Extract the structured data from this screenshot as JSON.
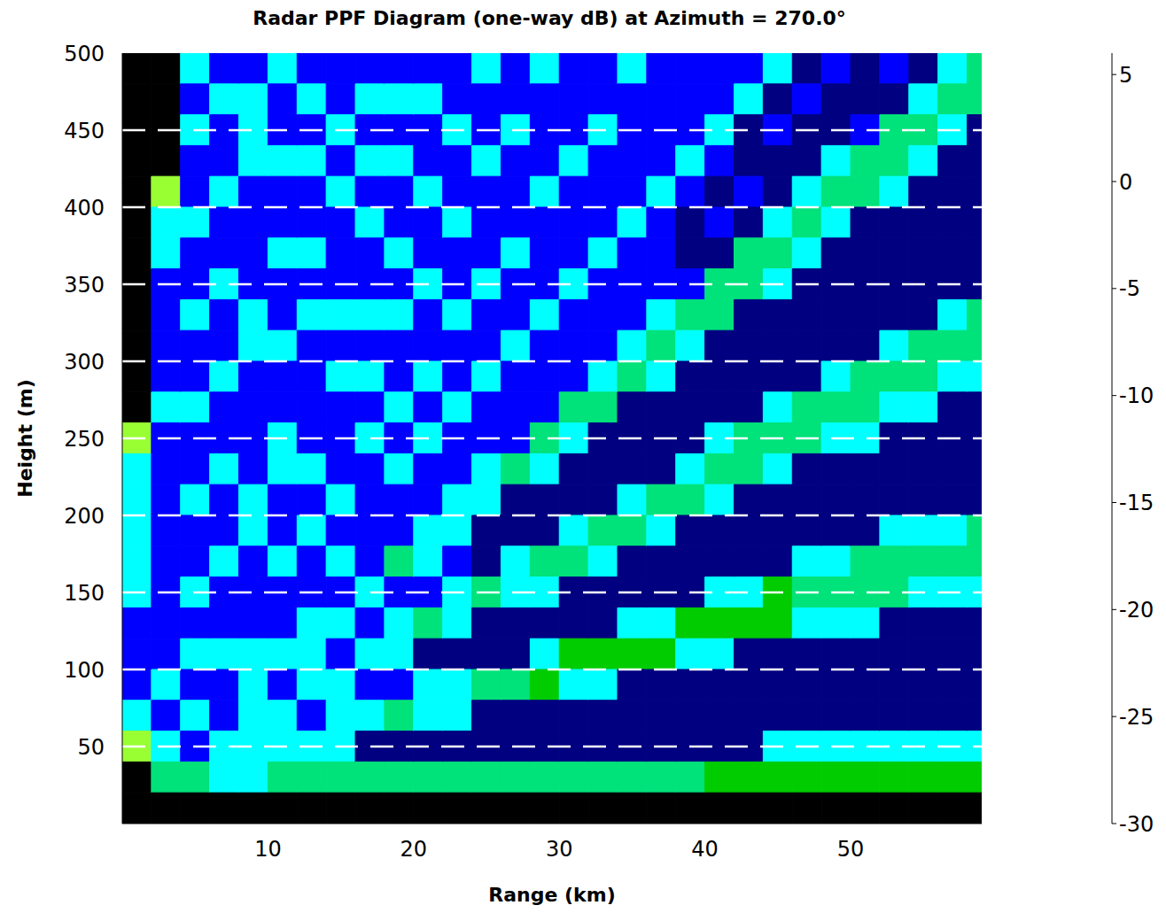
{
  "chart_data": {
    "type": "heatmap",
    "title": "Radar PPF Diagram (one-way dB) at Azimuth = 270.0°",
    "x_label": "Range (km)",
    "y_label": "Height (m)",
    "xlim": [
      0,
      59
    ],
    "xticks": [
      10,
      20,
      30,
      40,
      50
    ],
    "ylim": [
      0,
      500
    ],
    "yticks": [
      50,
      100,
      150,
      200,
      250,
      300,
      350,
      400,
      450,
      500
    ],
    "grid": true,
    "cells": {
      "x_edges": [
        0,
        2,
        4,
        6,
        8,
        10,
        12,
        14,
        16,
        18,
        20,
        22,
        24,
        26,
        28,
        30,
        32,
        34,
        36,
        38,
        40,
        42,
        44,
        46,
        48,
        50,
        52,
        54,
        56,
        58,
        60
      ],
      "y_edges": [
        500,
        480,
        460,
        440,
        420,
        400,
        380,
        360,
        340,
        320,
        300,
        280,
        260,
        240,
        220,
        200,
        180,
        160,
        140,
        120,
        100,
        80,
        60,
        40,
        20,
        0
      ],
      "columns": [
        [
          -40,
          -40,
          -40,
          -40,
          -40,
          -40,
          -40,
          -40,
          -40,
          -40,
          -40,
          -40,
          -15,
          -3,
          -3,
          -3,
          -3,
          -3,
          0,
          0,
          0,
          -3,
          -15,
          -40,
          -40
        ],
        [
          -40,
          -40,
          -40,
          -40,
          -15,
          -3,
          -3,
          0,
          0,
          0,
          0,
          -3,
          0,
          0,
          0,
          0,
          0,
          0,
          0,
          0,
          -3,
          0,
          -3,
          -7,
          -40
        ],
        [
          -3,
          0,
          -3,
          0,
          0,
          -3,
          0,
          0,
          -3,
          0,
          0,
          -3,
          0,
          0,
          -3,
          0,
          0,
          -3,
          0,
          -3,
          0,
          -3,
          0,
          -7,
          -40
        ],
        [
          0,
          -3,
          0,
          0,
          -3,
          0,
          0,
          -3,
          0,
          0,
          -3,
          0,
          0,
          -3,
          0,
          0,
          -3,
          0,
          0,
          -3,
          0,
          0,
          -3,
          -3,
          -40
        ],
        [
          0,
          -3,
          -3,
          -3,
          0,
          0,
          0,
          0,
          -3,
          -3,
          0,
          0,
          0,
          0,
          -3,
          -3,
          0,
          0,
          0,
          -3,
          -3,
          -3,
          -3,
          -3,
          -40
        ],
        [
          -3,
          0,
          0,
          -3,
          0,
          0,
          -3,
          0,
          0,
          -3,
          0,
          0,
          -3,
          -3,
          0,
          0,
          -3,
          0,
          0,
          -3,
          0,
          -3,
          -3,
          -7,
          -40
        ],
        [
          0,
          -3,
          0,
          -3,
          0,
          0,
          -3,
          0,
          -3,
          0,
          0,
          0,
          0,
          -3,
          0,
          -3,
          0,
          0,
          -3,
          -3,
          -3,
          0,
          -3,
          -7,
          -40
        ],
        [
          0,
          0,
          -3,
          0,
          -3,
          0,
          0,
          0,
          -3,
          0,
          -3,
          0,
          0,
          0,
          -3,
          0,
          -3,
          0,
          -3,
          0,
          -3,
          -3,
          -3,
          -7,
          -40
        ],
        [
          0,
          -3,
          0,
          -3,
          0,
          -3,
          0,
          0,
          -3,
          0,
          -3,
          0,
          -3,
          0,
          0,
          0,
          0,
          -3,
          0,
          -3,
          0,
          -3,
          4,
          -7,
          -40
        ],
        [
          0,
          -3,
          0,
          -3,
          0,
          0,
          -3,
          0,
          -3,
          0,
          0,
          -3,
          0,
          -3,
          0,
          0,
          -7,
          0,
          -3,
          -3,
          0,
          -7,
          4,
          -7,
          -40
        ],
        [
          0,
          -3,
          0,
          0,
          -3,
          0,
          0,
          -3,
          0,
          0,
          -3,
          0,
          -3,
          0,
          0,
          -3,
          -3,
          0,
          -7,
          4,
          -3,
          -3,
          4,
          -7,
          -40
        ],
        [
          0,
          0,
          -3,
          0,
          0,
          -3,
          0,
          0,
          -3,
          0,
          0,
          -3,
          0,
          0,
          -3,
          -3,
          0,
          -3,
          -3,
          4,
          -3,
          -3,
          4,
          -7,
          -40
        ],
        [
          -3,
          0,
          0,
          -3,
          0,
          0,
          0,
          -3,
          0,
          0,
          -3,
          0,
          0,
          -3,
          -3,
          4,
          4,
          -7,
          4,
          4,
          -7,
          4,
          4,
          -7,
          -40
        ],
        [
          0,
          0,
          -3,
          0,
          0,
          0,
          -3,
          0,
          0,
          -3,
          0,
          0,
          0,
          -7,
          4,
          4,
          -3,
          -3,
          4,
          4,
          -7,
          4,
          4,
          -7,
          -40
        ],
        [
          -3,
          0,
          0,
          0,
          -3,
          0,
          0,
          0,
          -3,
          0,
          0,
          0,
          -7,
          -3,
          4,
          4,
          -7,
          -3,
          4,
          -3,
          -10,
          4,
          4,
          -7,
          -40
        ],
        [
          0,
          0,
          0,
          -3,
          0,
          0,
          0,
          -3,
          0,
          0,
          0,
          -7,
          -3,
          4,
          4,
          -3,
          -7,
          4,
          4,
          -10,
          -3,
          4,
          4,
          -7,
          -40
        ],
        [
          0,
          0,
          -3,
          0,
          0,
          0,
          -3,
          0,
          0,
          0,
          -3,
          -7,
          4,
          4,
          4,
          -7,
          -3,
          4,
          4,
          -10,
          -3,
          4,
          4,
          -7,
          -40
        ],
        [
          -3,
          0,
          0,
          0,
          0,
          -3,
          0,
          0,
          0,
          -3,
          -7,
          4,
          4,
          4,
          -3,
          -7,
          4,
          4,
          -3,
          -10,
          4,
          4,
          4,
          -7,
          -40
        ],
        [
          0,
          0,
          0,
          0,
          -3,
          0,
          0,
          0,
          -3,
          -7,
          -3,
          4,
          4,
          4,
          -7,
          -3,
          4,
          4,
          -3,
          -10,
          4,
          4,
          4,
          -7,
          -40
        ],
        [
          0,
          0,
          0,
          -3,
          0,
          4,
          4,
          0,
          -7,
          -3,
          4,
          4,
          4,
          -3,
          -7,
          4,
          4,
          4,
          -10,
          -3,
          4,
          4,
          4,
          -7,
          -40
        ],
        [
          0,
          0,
          -3,
          0,
          4,
          0,
          4,
          -7,
          -7,
          4,
          4,
          4,
          -3,
          -7,
          -3,
          4,
          4,
          -3,
          -10,
          -3,
          4,
          4,
          4,
          -10,
          -40
        ],
        [
          0,
          -3,
          4,
          4,
          0,
          4,
          -7,
          -7,
          4,
          4,
          4,
          4,
          -7,
          -7,
          4,
          4,
          4,
          -3,
          -10,
          4,
          4,
          4,
          4,
          -10,
          -40
        ],
        [
          -3,
          4,
          0,
          4,
          4,
          -3,
          -7,
          -3,
          4,
          4,
          4,
          -3,
          -7,
          -3,
          4,
          4,
          4,
          -10,
          -10,
          4,
          4,
          4,
          -3,
          -10,
          -40
        ],
        [
          4,
          0,
          4,
          4,
          -3,
          -7,
          -3,
          4,
          4,
          4,
          4,
          -7,
          -7,
          4,
          4,
          4,
          -3,
          -7,
          -3,
          4,
          4,
          4,
          -3,
          -10,
          -40
        ],
        [
          0,
          4,
          4,
          -3,
          -7,
          -3,
          4,
          4,
          4,
          4,
          -3,
          -7,
          -3,
          4,
          4,
          4,
          -3,
          -7,
          -3,
          4,
          4,
          4,
          -3,
          -10,
          -40
        ],
        [
          4,
          4,
          0,
          -7,
          -7,
          4,
          4,
          4,
          4,
          4,
          -7,
          -7,
          -3,
          4,
          4,
          4,
          -7,
          -7,
          -3,
          4,
          4,
          4,
          -3,
          -10,
          -40
        ],
        [
          0,
          4,
          -7,
          -7,
          -3,
          4,
          4,
          4,
          4,
          -3,
          -7,
          -3,
          4,
          4,
          4,
          -3,
          -7,
          -7,
          4,
          4,
          4,
          4,
          -3,
          -10,
          -40
        ],
        [
          4,
          -3,
          -7,
          -3,
          4,
          4,
          4,
          4,
          4,
          -7,
          -7,
          -3,
          4,
          4,
          4,
          -3,
          -7,
          -3,
          4,
          4,
          4,
          4,
          -3,
          -10,
          -40
        ],
        [
          -3,
          -7,
          -3,
          4,
          4,
          4,
          4,
          4,
          -3,
          -7,
          -3,
          4,
          4,
          4,
          4,
          -3,
          -7,
          -3,
          4,
          4,
          4,
          4,
          -3,
          -10,
          -40
        ],
        [
          -7,
          -7,
          4,
          4,
          4,
          4,
          4,
          4,
          -7,
          -7,
          -3,
          4,
          4,
          4,
          4,
          -7,
          -7,
          -3,
          4,
          4,
          4,
          4,
          -3,
          -10,
          -40
        ]
      ]
    },
    "colorbar": {
      "range": [
        -30,
        6
      ],
      "ticks": [
        5,
        0,
        -5,
        -10,
        -15,
        -20,
        -25,
        -30
      ],
      "levels": [
        6,
        3,
        -1,
        -5,
        -8,
        -11,
        -16,
        -19,
        -23,
        -27,
        -30
      ],
      "colors": [
        "#000080",
        "#0000ff",
        "#00ffff",
        "#00e27a",
        "#00cc00",
        "#99ff33",
        "#ffff00",
        "#ff8000",
        "#ff0000",
        "#800000",
        "#000000"
      ]
    }
  }
}
